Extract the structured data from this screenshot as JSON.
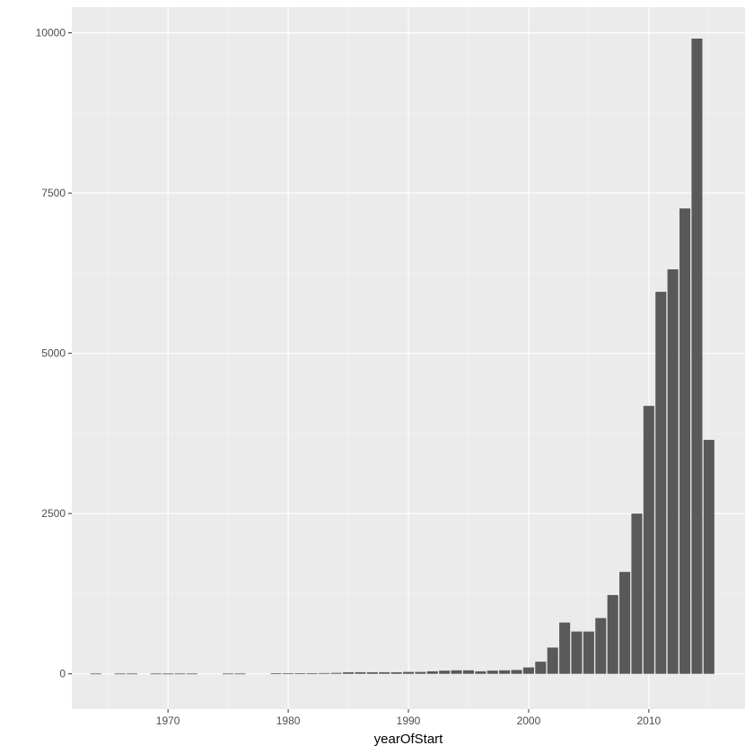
{
  "chart_data": {
    "type": "bar",
    "xlabel": "yearOfStart",
    "ylabel": "",
    "title": "",
    "xlim": [
      1962,
      2018
    ],
    "ylim": [
      -550,
      10400
    ],
    "x_ticks": [
      1970,
      1980,
      1990,
      2000,
      2010
    ],
    "x_tick_labels": [
      "1970",
      "1980",
      "1990",
      "2000",
      "2010"
    ],
    "y_ticks": [
      0,
      2500,
      5000,
      7500,
      10000
    ],
    "y_tick_labels": [
      "0",
      "2500",
      "5000",
      "7500",
      "10000"
    ],
    "grid": true,
    "legend": "none",
    "colors": {
      "bar": "#595959",
      "panel_background": "#ebebeb",
      "grid_major": "#ffffff",
      "grid_minor": "#f5f5f5",
      "tick_label": "#4d4d4d",
      "axis_title": "#000000"
    },
    "x": [
      1964,
      1966,
      1967,
      1969,
      1970,
      1971,
      1972,
      1975,
      1976,
      1979,
      1980,
      1981,
      1982,
      1983,
      1984,
      1985,
      1986,
      1987,
      1988,
      1989,
      1990,
      1991,
      1992,
      1993,
      1994,
      1995,
      1996,
      1997,
      1998,
      1999,
      2000,
      2001,
      2002,
      2003,
      2004,
      2005,
      2006,
      2007,
      2008,
      2009,
      2010,
      2011,
      2012,
      2013,
      2014,
      2015
    ],
    "values": [
      5,
      5,
      5,
      5,
      5,
      5,
      5,
      5,
      5,
      10,
      10,
      10,
      10,
      12,
      15,
      25,
      25,
      25,
      25,
      25,
      30,
      30,
      40,
      50,
      55,
      55,
      40,
      50,
      55,
      60,
      100,
      190,
      410,
      800,
      660,
      660,
      870,
      1230,
      1590,
      2500,
      4180,
      5960,
      6310,
      7260,
      9910,
      3650
    ]
  }
}
